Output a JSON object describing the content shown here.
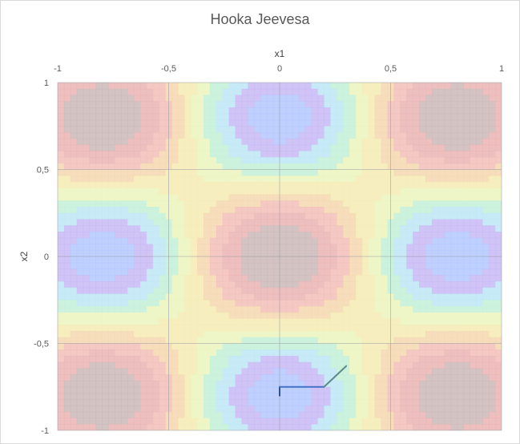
{
  "chart_data": {
    "type": "contour",
    "title": "Hooka Jeevesa",
    "xlabel": "x1",
    "ylabel": "x2",
    "xlim": [
      -1,
      1
    ],
    "ylim": [
      -1,
      1
    ],
    "x_ticks": [
      -1,
      -0.5,
      0,
      0.5,
      1
    ],
    "y_ticks": [
      1,
      0.5,
      0,
      -0.5,
      -1
    ],
    "x_tick_labels": [
      "-1",
      "-0,5",
      "0",
      "0,5",
      "1"
    ],
    "y_tick_labels": [
      "1",
      "0,5",
      "0",
      "-0,5",
      "-1"
    ],
    "grid": true,
    "contour_colors": [
      "#b3c7ff",
      "#c4b8f5",
      "#bfe8f5",
      "#bff0c8",
      "#f5f0b0",
      "#f5d4a8",
      "#f2b8b8",
      "#c9b3b3"
    ],
    "path_series": [
      {
        "x": [
          0,
          0,
          0.2,
          0.3
        ],
        "y": [
          -0.8,
          -0.75,
          -0.75,
          -0.63
        ],
        "colors": [
          "#2f5597",
          "#4472c4",
          "#5b8a8a"
        ]
      }
    ]
  }
}
